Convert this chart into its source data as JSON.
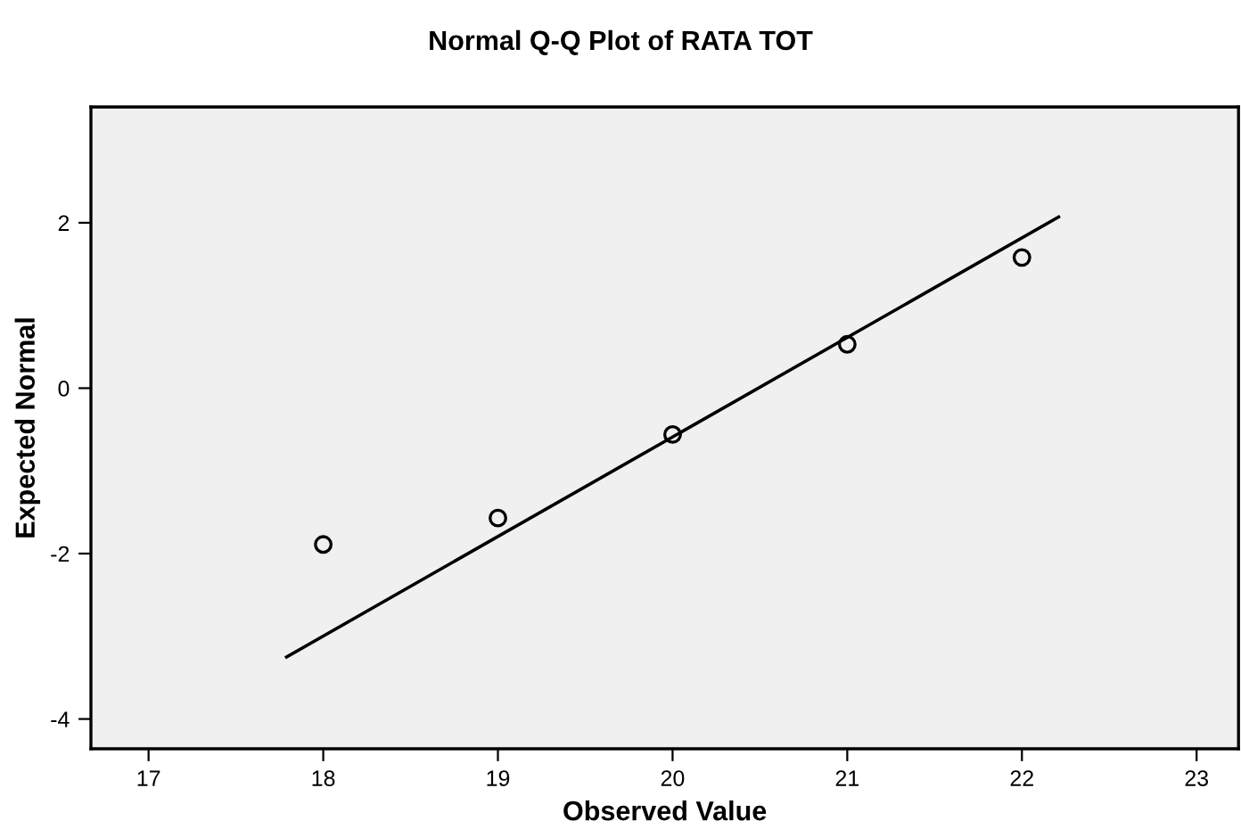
{
  "chart_data": {
    "type": "scatter",
    "title": "Normal Q-Q Plot of RATA TOT",
    "xlabel": "Observed Value",
    "ylabel": "Expected Normal",
    "xlim": [
      16.67,
      23.24
    ],
    "ylim": [
      -4.36,
      3.4
    ],
    "xticks": [
      17,
      18,
      19,
      20,
      21,
      22,
      23
    ],
    "yticks": [
      -4,
      -2,
      0,
      2
    ],
    "grid": false,
    "marker": "circle",
    "series": [
      {
        "color": "#000000",
        "x": [
          18,
          19,
          20,
          21,
          22
        ],
        "values": [
          -1.89,
          -1.57,
          -0.56,
          0.53,
          1.58
        ]
      },
      {
        "type": "line",
        "marker": "none",
        "color": "#000000",
        "x": [
          17.79,
          22.21
        ],
        "values": [
          -3.25,
          2.07
        ]
      }
    ]
  }
}
